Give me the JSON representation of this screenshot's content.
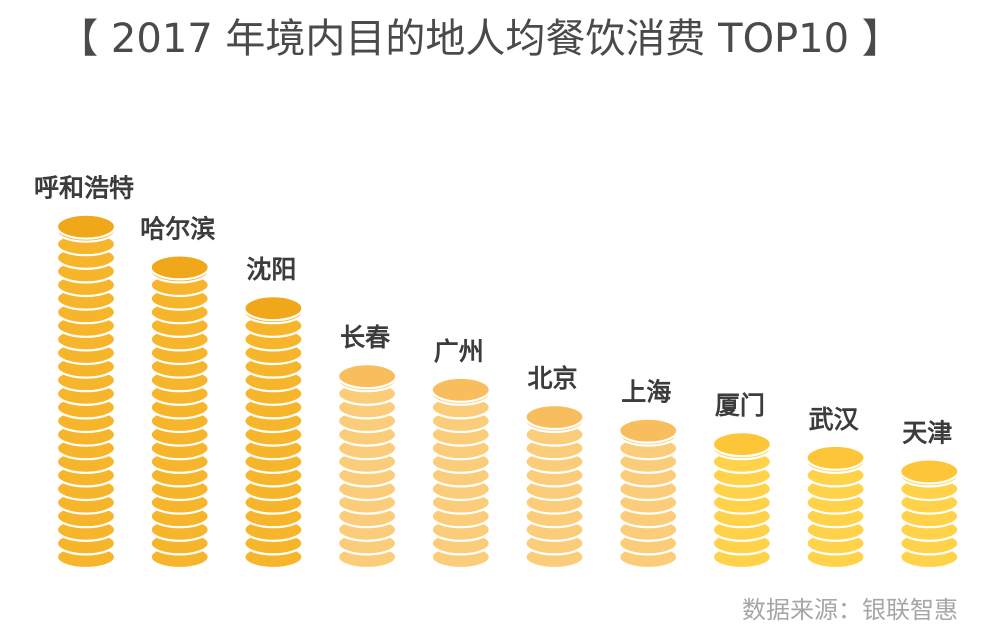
{
  "title": "【 2017 年境内目的地人均餐饮消费 TOP10 】",
  "source": "数据来源：银联智惠",
  "colors": {
    "title": "#4a4a4a",
    "source": "#a6a6a6",
    "tier_top": {
      "coin": "#f7b52c",
      "edge": "#f0a81a"
    },
    "tier_mid": {
      "coin": "#fbcd7a",
      "edge": "#f8bd5c"
    },
    "tier_low": {
      "coin": "#ffd24a",
      "edge": "#fcc638"
    }
  },
  "chart_data": {
    "type": "bar",
    "style": "coin-stack",
    "categories": [
      "呼和浩特",
      "哈尔滨",
      "沈阳",
      "长春",
      "广州",
      "北京",
      "上海",
      "厦门",
      "武汉",
      "天津"
    ],
    "values": [
      25,
      22,
      19,
      14,
      13,
      11,
      10,
      9,
      8,
      7
    ],
    "tiers": [
      "tier_top",
      "tier_top",
      "tier_top",
      "tier_mid",
      "tier_mid",
      "tier_mid",
      "tier_mid",
      "tier_low",
      "tier_low",
      "tier_low"
    ],
    "xlabel": "",
    "ylabel": "",
    "grid": false,
    "legend": "none"
  }
}
